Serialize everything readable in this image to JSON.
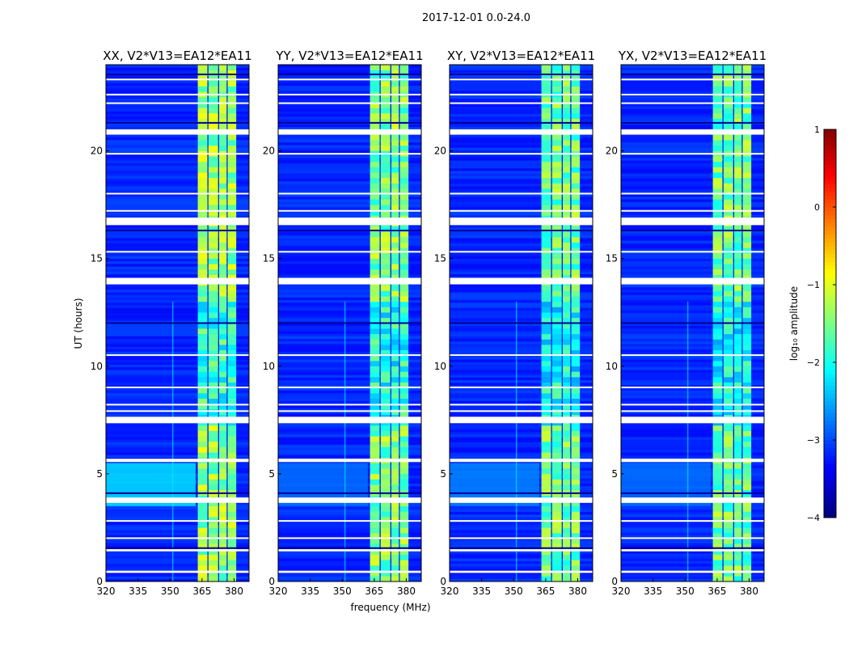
{
  "chart_data": {
    "type": "heatmap",
    "suptitle": "2017-12-01 0.0-24.0",
    "xlabel": "frequency (MHz)",
    "ylabel": "UT (hours)",
    "xlim": [
      320,
      387
    ],
    "ylim": [
      0,
      24
    ],
    "xticks": [
      "320",
      "335",
      "350",
      "365",
      "380"
    ],
    "xtick_values": [
      320,
      335,
      350,
      365,
      380
    ],
    "yticks": [
      "0",
      "5",
      "10",
      "15",
      "20"
    ],
    "ytick_values": [
      0,
      5,
      10,
      15,
      20
    ],
    "panels": [
      {
        "title": "XX, V2*V13=EA12*EA11",
        "band_level": -1.4,
        "low_freq_enhance": -2.2
      },
      {
        "title": "YY, V2*V13=EA12*EA11",
        "band_level": -1.5,
        "low_freq_enhance": -2.8
      },
      {
        "title": "XY, V2*V13=EA12*EA11",
        "band_level": -1.6,
        "low_freq_enhance": -2.7
      },
      {
        "title": "YX, V2*V13=EA12*EA11",
        "band_level": -1.6,
        "low_freq_enhance": -2.8
      }
    ],
    "background_level": -3.2,
    "rfi_bands_mhz": [
      [
        363,
        367.5
      ],
      [
        368,
        372.5
      ],
      [
        373,
        376.5
      ],
      [
        377,
        381
      ]
    ],
    "narrow_rfi_mhz": 351,
    "flagged_ut_hours": [
      [
        0.4,
        0.5
      ],
      [
        1.4,
        1.5
      ],
      [
        2.0,
        2.05
      ],
      [
        2.8,
        2.85
      ],
      [
        3.65,
        3.9
      ],
      [
        5.55,
        5.7
      ],
      [
        7.35,
        7.65
      ],
      [
        7.9,
        7.95
      ],
      [
        8.2,
        8.25
      ],
      [
        9.0,
        9.05
      ],
      [
        10.5,
        10.55
      ],
      [
        13.8,
        14.1
      ],
      [
        15.3,
        15.35
      ],
      [
        16.55,
        16.9
      ],
      [
        17.2,
        17.25
      ],
      [
        18.0,
        18.05
      ],
      [
        19.85,
        19.9
      ],
      [
        20.75,
        21.0
      ],
      [
        22.2,
        22.25
      ],
      [
        22.6,
        22.65
      ],
      [
        23.3,
        23.35
      ]
    ],
    "dark_ut_hours": [
      1.55,
      4.1,
      12.0,
      16.3,
      23.55,
      21.3
    ],
    "colorbar": {
      "label": "log₁₀ amplitude",
      "range": [
        -4,
        1
      ],
      "ticks": [
        "1",
        "0",
        "−1",
        "−2",
        "−3",
        "−4"
      ],
      "tick_values": [
        1,
        0,
        -1,
        -2,
        -3,
        -4
      ],
      "colormap": "jet"
    }
  }
}
